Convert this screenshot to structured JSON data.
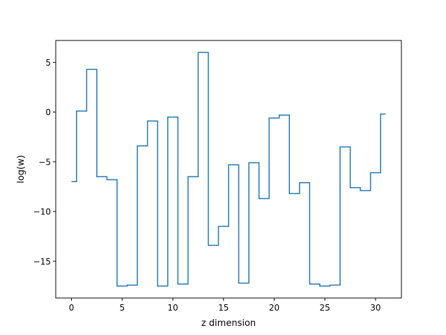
{
  "chart_data": {
    "type": "line",
    "drawstyle": "steps-mid",
    "xlabel": "z dimension",
    "ylabel": "log(w)",
    "xlim": [
      -1.55,
      32.55
    ],
    "ylim": [
      -18.7,
      7.2
    ],
    "xticks": [
      0,
      5,
      10,
      15,
      20,
      25,
      30
    ],
    "yticks": [
      -15,
      -10,
      -5,
      0,
      5
    ],
    "grid": false,
    "series": [
      {
        "color": "#1f77b4",
        "x": [
          0,
          1,
          2,
          3,
          4,
          5,
          6,
          7,
          8,
          9,
          10,
          11,
          12,
          13,
          14,
          15,
          16,
          17,
          18,
          19,
          20,
          21,
          22,
          23,
          24,
          25,
          26,
          27,
          28,
          29,
          30,
          31
        ],
        "values": [
          -7.0,
          0.1,
          4.3,
          -6.5,
          -6.8,
          -17.5,
          -17.4,
          -3.4,
          -0.9,
          -17.5,
          -0.5,
          -17.3,
          -6.5,
          6.0,
          -13.4,
          -11.5,
          -5.3,
          -17.2,
          -5.1,
          -8.7,
          -0.6,
          -0.3,
          -8.2,
          -7.1,
          -17.3,
          -17.5,
          -17.4,
          -3.5,
          -7.6,
          -7.9,
          -6.1,
          -0.2
        ]
      }
    ]
  }
}
